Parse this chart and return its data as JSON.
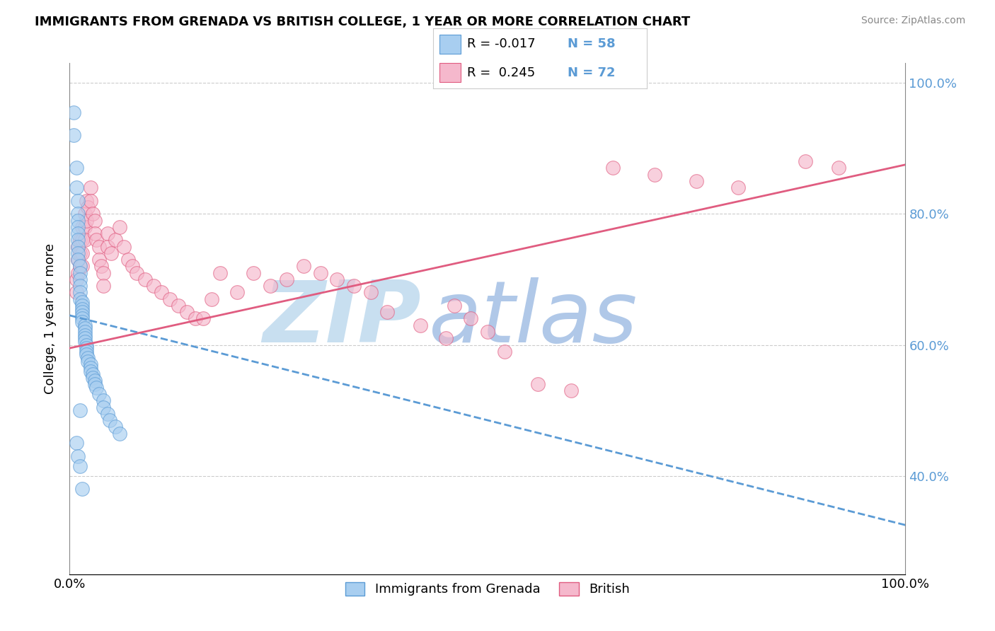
{
  "title": "IMMIGRANTS FROM GRENADA VS BRITISH COLLEGE, 1 YEAR OR MORE CORRELATION CHART",
  "source_text": "Source: ZipAtlas.com",
  "ylabel": "College, 1 year or more",
  "xlim": [
    0.0,
    1.0
  ],
  "ylim": [
    0.25,
    1.03
  ],
  "xtick_labels": [
    "0.0%",
    "100.0%"
  ],
  "ytick_labels_right": [
    "40.0%",
    "60.0%",
    "80.0%",
    "100.0%"
  ],
  "ytick_positions_right": [
    0.4,
    0.6,
    0.8,
    1.0
  ],
  "legend_r1": "R = -0.017",
  "legend_n1": "N = 58",
  "legend_r2": "R =  0.245",
  "legend_n2": "N = 72",
  "color_blue": "#A8CEF0",
  "color_pink": "#F5B8CC",
  "color_blue_line": "#5B9BD5",
  "color_pink_line": "#E05C80",
  "watermark_zip": "ZIP",
  "watermark_atlas": "atlas",
  "watermark_color_zip": "#C8DFF0",
  "watermark_color_atlas": "#B0C8E8",
  "grid_color": "#CCCCCC",
  "bg_color": "#FFFFFF",
  "blue_line_x0": 0.0,
  "blue_line_y0": 0.645,
  "blue_line_x1": 1.0,
  "blue_line_y1": 0.325,
  "pink_line_x0": 0.0,
  "pink_line_y0": 0.595,
  "pink_line_x1": 1.0,
  "pink_line_y1": 0.875,
  "blue_dots_x": [
    0.005,
    0.005,
    0.008,
    0.008,
    0.01,
    0.01,
    0.01,
    0.01,
    0.01,
    0.01,
    0.01,
    0.01,
    0.01,
    0.012,
    0.012,
    0.012,
    0.012,
    0.012,
    0.012,
    0.015,
    0.015,
    0.015,
    0.015,
    0.015,
    0.015,
    0.015,
    0.018,
    0.018,
    0.018,
    0.018,
    0.018,
    0.018,
    0.02,
    0.02,
    0.02,
    0.02,
    0.022,
    0.022,
    0.025,
    0.025,
    0.025,
    0.028,
    0.028,
    0.03,
    0.03,
    0.032,
    0.035,
    0.04,
    0.04,
    0.045,
    0.048,
    0.055,
    0.06,
    0.012,
    0.008,
    0.01,
    0.012,
    0.015
  ],
  "blue_dots_y": [
    0.955,
    0.92,
    0.87,
    0.84,
    0.82,
    0.8,
    0.79,
    0.78,
    0.77,
    0.76,
    0.75,
    0.74,
    0.73,
    0.72,
    0.71,
    0.7,
    0.69,
    0.68,
    0.67,
    0.665,
    0.66,
    0.655,
    0.65,
    0.645,
    0.64,
    0.635,
    0.63,
    0.625,
    0.62,
    0.615,
    0.61,
    0.605,
    0.6,
    0.595,
    0.59,
    0.585,
    0.58,
    0.575,
    0.57,
    0.565,
    0.56,
    0.555,
    0.55,
    0.545,
    0.54,
    0.535,
    0.525,
    0.515,
    0.505,
    0.495,
    0.485,
    0.475,
    0.465,
    0.5,
    0.45,
    0.43,
    0.415,
    0.38
  ],
  "pink_dots_x": [
    0.008,
    0.008,
    0.01,
    0.01,
    0.01,
    0.012,
    0.012,
    0.012,
    0.015,
    0.015,
    0.015,
    0.015,
    0.018,
    0.018,
    0.018,
    0.02,
    0.02,
    0.022,
    0.025,
    0.025,
    0.028,
    0.03,
    0.03,
    0.032,
    0.035,
    0.035,
    0.038,
    0.04,
    0.04,
    0.045,
    0.045,
    0.05,
    0.055,
    0.06,
    0.065,
    0.07,
    0.075,
    0.08,
    0.09,
    0.1,
    0.11,
    0.12,
    0.13,
    0.14,
    0.15,
    0.16,
    0.17,
    0.18,
    0.2,
    0.22,
    0.24,
    0.26,
    0.28,
    0.3,
    0.32,
    0.34,
    0.36,
    0.38,
    0.42,
    0.45,
    0.46,
    0.48,
    0.5,
    0.52,
    0.56,
    0.6,
    0.65,
    0.7,
    0.75,
    0.8,
    0.88,
    0.92
  ],
  "pink_dots_y": [
    0.7,
    0.68,
    0.75,
    0.73,
    0.71,
    0.76,
    0.74,
    0.72,
    0.78,
    0.76,
    0.74,
    0.72,
    0.8,
    0.78,
    0.76,
    0.82,
    0.79,
    0.81,
    0.84,
    0.82,
    0.8,
    0.79,
    0.77,
    0.76,
    0.75,
    0.73,
    0.72,
    0.71,
    0.69,
    0.77,
    0.75,
    0.74,
    0.76,
    0.78,
    0.75,
    0.73,
    0.72,
    0.71,
    0.7,
    0.69,
    0.68,
    0.67,
    0.66,
    0.65,
    0.64,
    0.64,
    0.67,
    0.71,
    0.68,
    0.71,
    0.69,
    0.7,
    0.72,
    0.71,
    0.7,
    0.69,
    0.68,
    0.65,
    0.63,
    0.61,
    0.66,
    0.64,
    0.62,
    0.59,
    0.54,
    0.53,
    0.87,
    0.86,
    0.85,
    0.84,
    0.88,
    0.87
  ]
}
